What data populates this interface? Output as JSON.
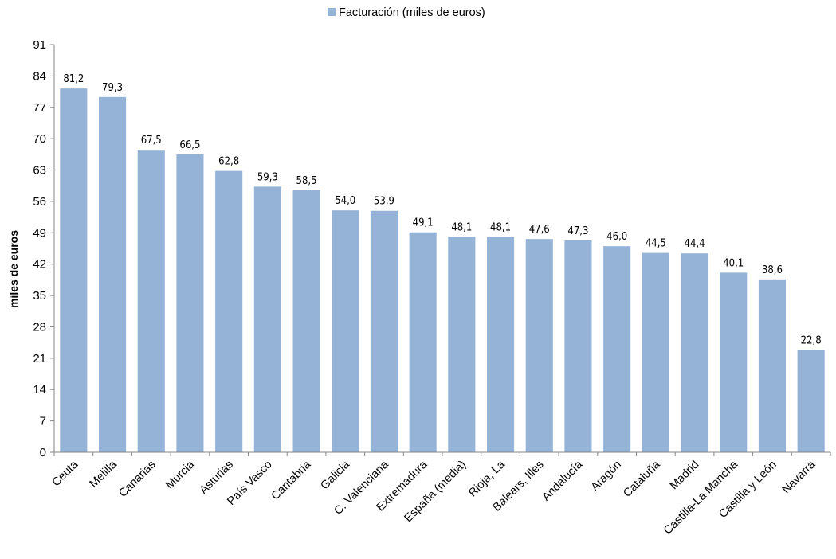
{
  "chart_data": {
    "type": "bar",
    "ylabel": "miles de euros",
    "ylim": [
      0,
      91
    ],
    "ytick_step": 7,
    "yticks": [
      "0",
      "7",
      "14",
      "21",
      "28",
      "35",
      "42",
      "49",
      "56",
      "63",
      "70",
      "77",
      "84",
      "91"
    ],
    "legend": {
      "position": "top",
      "entries": [
        "Facturación (miles de euros)"
      ]
    },
    "series": [
      {
        "name": "Facturación (miles de euros)",
        "color": "#95b3d7",
        "values": [
          81.2,
          79.3,
          67.5,
          66.5,
          62.8,
          59.3,
          58.5,
          54.0,
          53.9,
          49.1,
          48.1,
          48.1,
          47.6,
          47.3,
          46.0,
          44.5,
          44.4,
          40.1,
          38.6,
          22.8
        ],
        "value_labels": [
          "81,2",
          "79,3",
          "67,5",
          "66,5",
          "62,8",
          "59,3",
          "58,5",
          "54,0",
          "53,9",
          "49,1",
          "48,1",
          "48,1",
          "47,6",
          "47,3",
          "46,0",
          "44,5",
          "44,4",
          "40,1",
          "38,6",
          "22,8"
        ]
      }
    ],
    "categories": [
      "Ceuta",
      "Melilla",
      "Canarias",
      "Murcia",
      "Asturias",
      "País Vasco",
      "Cantabria",
      "Galicia",
      "C. Valenciana",
      "Extremadura",
      "España  (media)",
      "Rioja, La",
      "Balears, Illes",
      "Andalucía",
      "Aragón",
      "Cataluña",
      "Madrid",
      "Castilla-La Mancha",
      "Castilla y León",
      "Navarra"
    ],
    "grid": false,
    "colors": {
      "bar": "#95b3d7",
      "axis": "#868686"
    }
  }
}
